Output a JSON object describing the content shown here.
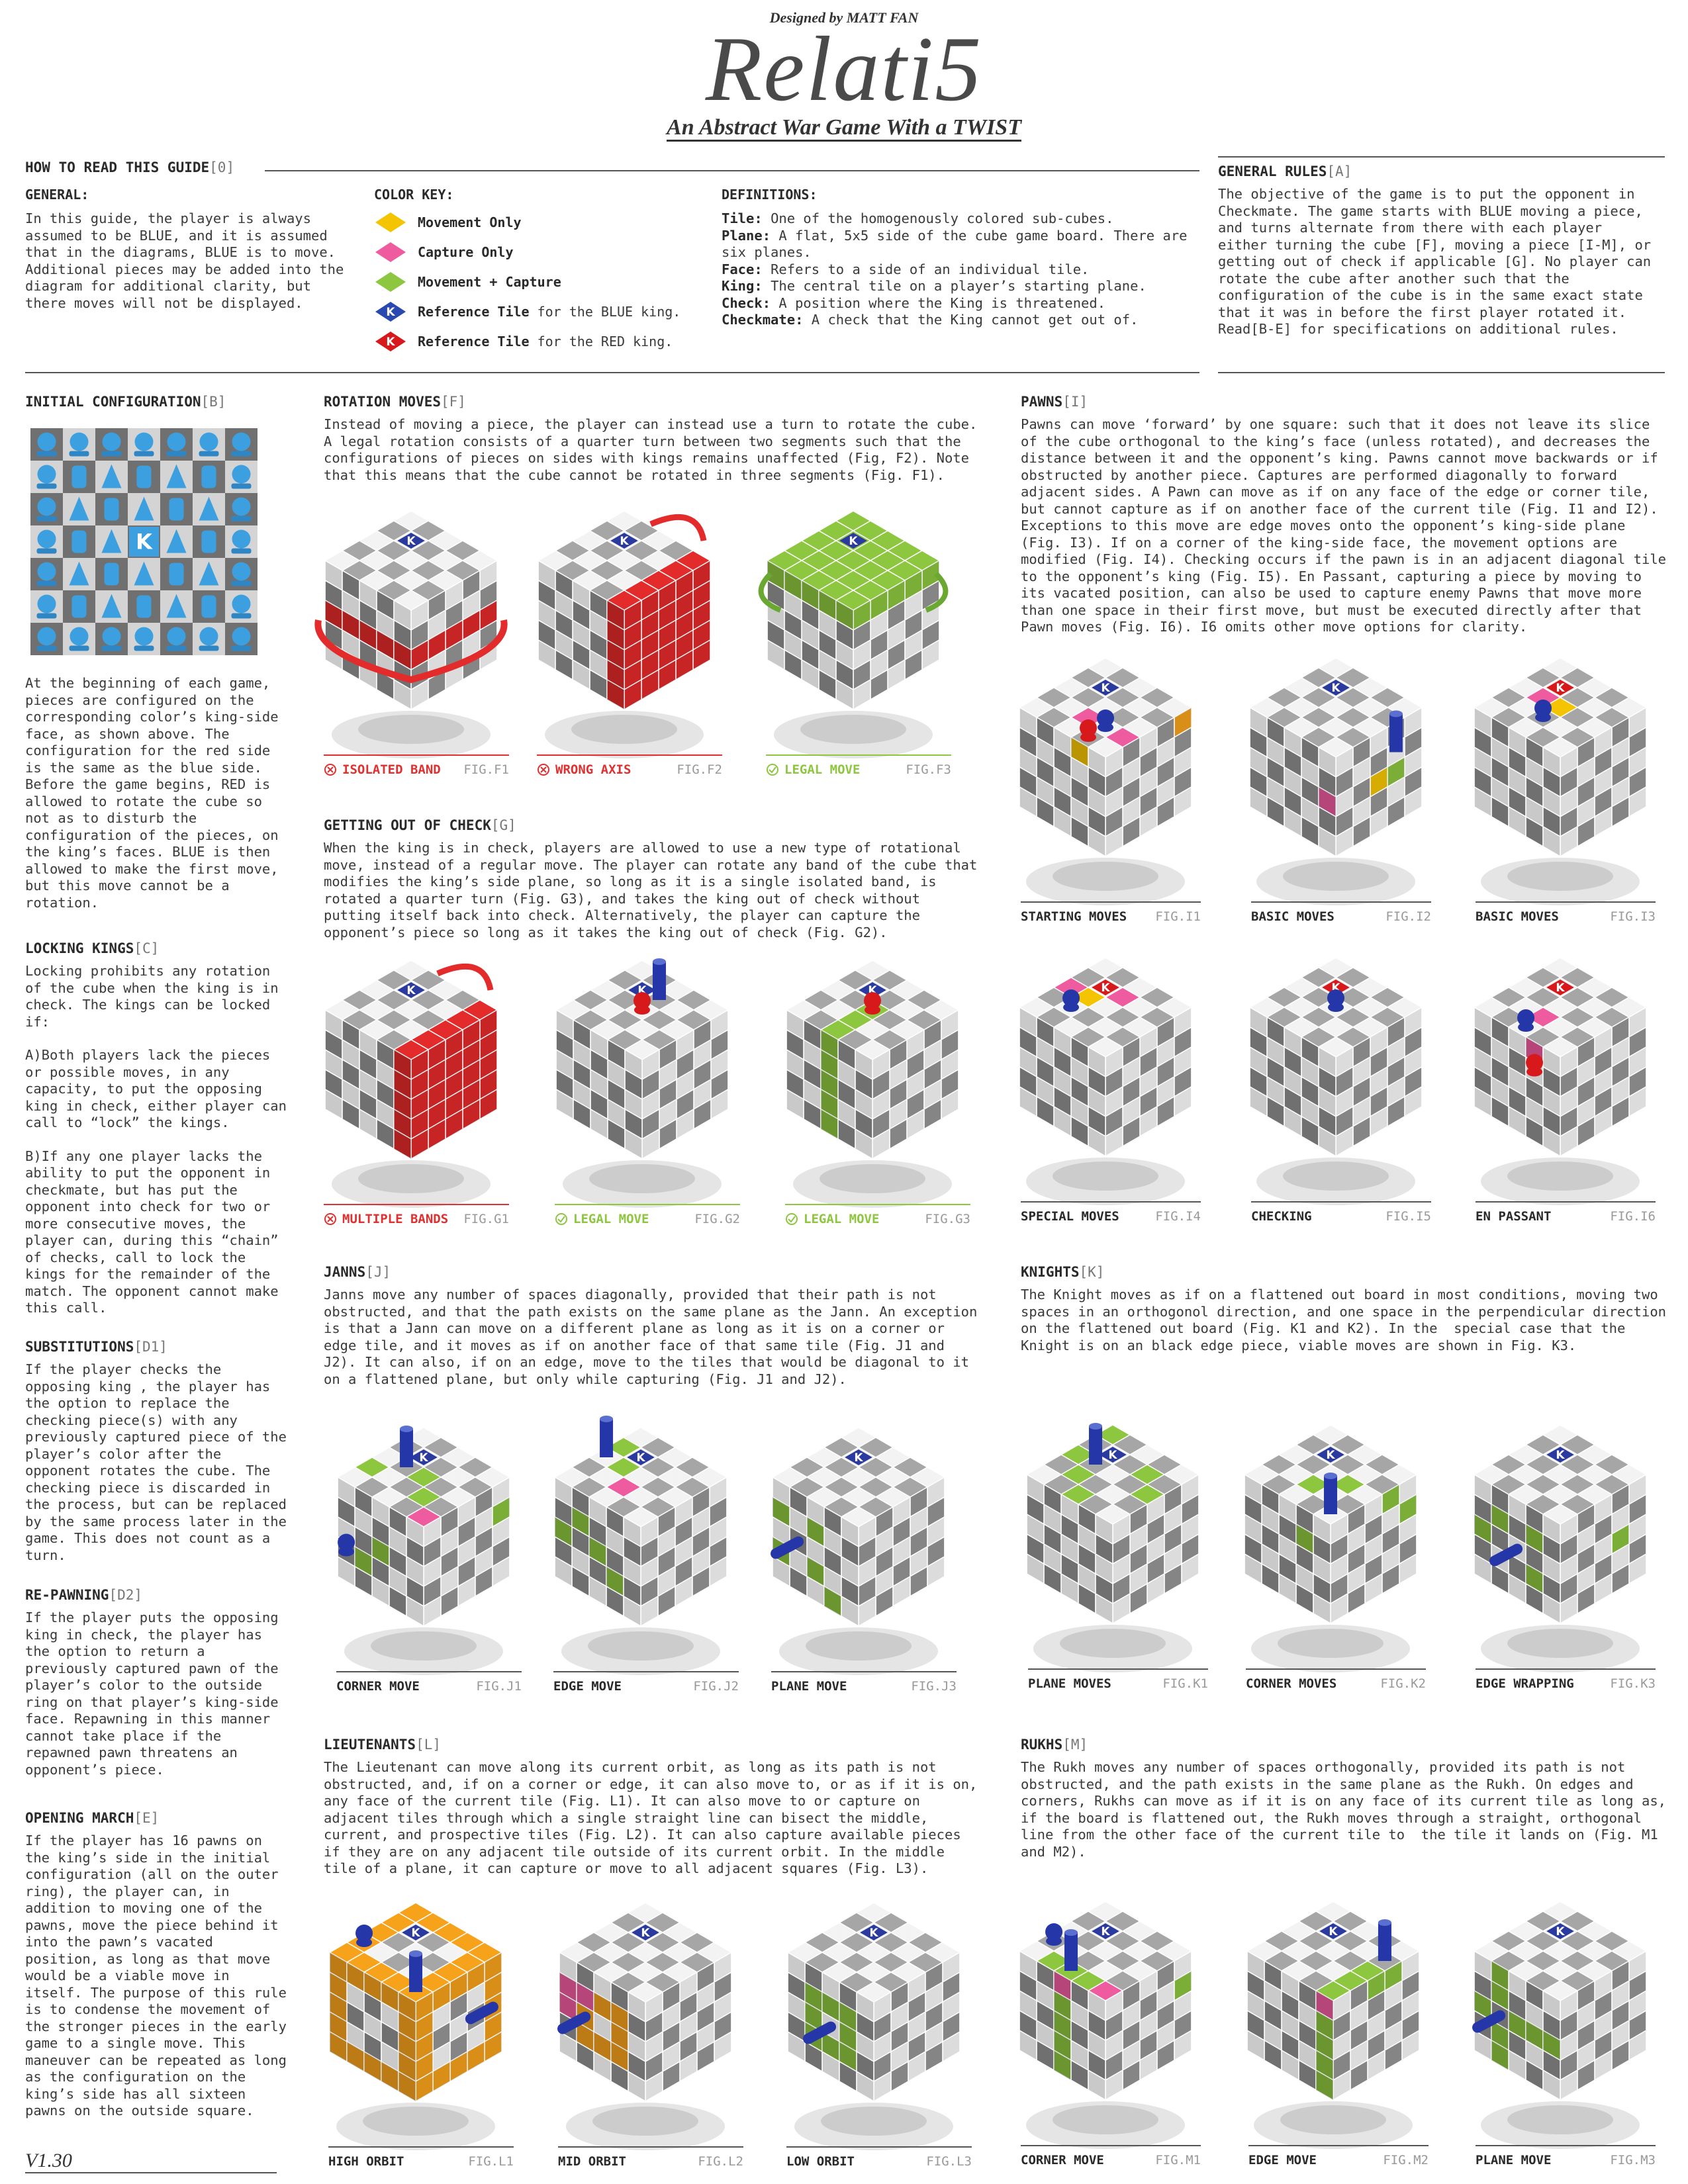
{
  "header": {
    "credit": "Designed by MATT FAN",
    "title": "Relati5",
    "subtitle": "An Abstract War Game With a TWIST"
  },
  "king_marker": "K",
  "guide": {
    "heading": "HOW TO READ THIS GUIDE",
    "tag": "[0]",
    "general": {
      "heading": "GENERAL:",
      "text": "In this guide, the player is always assumed to be BLUE, and it is assumed that in the diagrams, BLUE is to move. Additional pieces may be added into the diagram for additional clarity, but there moves will not be displayed."
    },
    "color_key": {
      "heading": "COLOR KEY:",
      "items": [
        {
          "label": "Movement Only"
        },
        {
          "label": "Capture Only"
        },
        {
          "label": "Movement + Capture"
        },
        {
          "label": "Reference Tile",
          "note": "for the BLUE king."
        },
        {
          "label": "Reference Tile",
          "note": "for the RED king."
        }
      ]
    },
    "definitions": {
      "heading": "DEFINITIONS:",
      "items": [
        {
          "term": "Tile:",
          "text": "One of the homogenously colored sub-cubes."
        },
        {
          "term": "Plane:",
          "text": "A flat, 5x5 side of the cube game board. There are six planes."
        },
        {
          "term": "Face:",
          "text": "Refers to a side of an individual tile."
        },
        {
          "term": "King:",
          "text": "The central tile on a player’s starting plane."
        },
        {
          "term": "Check:",
          "text": "A position where the King is threatened."
        },
        {
          "term": "Checkmate:",
          "text": "A check that the King cannot get out of."
        }
      ]
    }
  },
  "sections": [
    {
      "heading": "GENERAL RULES",
      "tag": "[A]",
      "paragraphs": [
        "The objective of the game is to put the opponent in Checkmate. The game starts with BLUE moving a piece, and turns alternate from there with each player either turning the cube [F], moving a piece [I-M], or getting out of check if applicable [G]. No player can rotate the cube after another such that the configuration of the cube is in the same exact state that it was in before the first player rotated it. Read[B-E] for specifications on additional rules."
      ]
    },
    {
      "heading": "INITIAL CONFIGURATION",
      "tag": "[B]",
      "paragraphs": [
        "At the beginning of each game, pieces are configured on the corresponding color’s king-side face, as shown above. The configuration for the red side is the same as the blue side. Before the game begins, RED is allowed to rotate the cube so not as to disturb the configuration of the pieces, on the king’s faces. BLUE is then allowed to make the first move, but this move cannot be a rotation."
      ]
    },
    {
      "heading": "LOCKING KINGS",
      "tag": "[C]",
      "paragraphs": [
        "Locking prohibits any rotation of the cube when the king is in check. The kings can be locked if:",
        "A)Both players lack the pieces or possible moves, in any capacity, to put the opposing king in check, either player can call to “lock” the kings.",
        "B)If any one player lacks the ability to put the opponent in checkmate, but has put the opponent into check for two or more consecutive moves, the player can, during this “chain” of checks, call to lock the kings for the remainder of the match. The opponent cannot make this call."
      ]
    },
    {
      "heading": "SUBSTITUTIONS",
      "tag": "[D1]",
      "paragraphs": [
        "If the player checks the opposing king , the player has the option to replace the checking piece(s) with any previously captured piece of the player’s color after the opponent rotates the cube. The checking piece is discarded in the process, but can be replaced by the same process later in the game. This does not count as a turn."
      ]
    },
    {
      "heading": "RE-PAWNING",
      "tag": "[D2]",
      "paragraphs": [
        "If the player puts the opposing king in check, the player has the option to return a previously captured pawn of the player’s color to the outside ring on that player’s king-side face. Repawning in this manner cannot take place if the repawned pawn threatens an opponent’s piece."
      ]
    },
    {
      "heading": "OPENING MARCH",
      "tag": "[E]",
      "paragraphs": [
        "If the player has 16 pawns on the king’s side in the initial configuration (all on the outer ring), the player can, in addition to moving one of the pawns, move the piece behind it into the pawn’s vacated position, as long as that move would be a viable move in itself. The purpose of this rule is to condense the movement of the stronger pieces in the early game to a single move. This maneuver can be repeated as long as the configuration on the king’s side has all sixteen pawns on the outside square."
      ]
    },
    {
      "heading": "ROTATION MOVES",
      "tag": "[F]",
      "paragraphs": [
        "Instead of moving a piece, the player can instead use a turn to rotate the cube. A legal rotation consists of a quarter turn between two segments such that the configurations of pieces on sides with kings remains unaffected (Fig, F2). Note that this means that the cube cannot be rotated in three segments (Fig. F1)."
      ],
      "figures": [
        {
          "label": "ISOLATED BAND",
          "fig": "FIG.F1"
        },
        {
          "label": "WRONG AXIS",
          "fig": "FIG.F2"
        },
        {
          "label": "LEGAL MOVE",
          "fig": "FIG.F3"
        }
      ]
    },
    {
      "heading": "GETTING OUT OF CHECK",
      "tag": "[G]",
      "paragraphs": [
        "When the king is in check, players are allowed to use a new type of rotational move, instead of a regular move. The player can rotate any band of the cube that modifies the king’s side plane, so long as it is a single isolated band, is rotated a quarter turn (Fig. G3), and takes the king out of check without putting itself back into check. Alternatively, the player can capture the opponent’s piece so long as it takes the king out of check (Fig. G2)."
      ],
      "figures": [
        {
          "label": "MULTIPLE BANDS",
          "fig": "FIG.G1"
        },
        {
          "label": "LEGAL MOVE",
          "fig": "FIG.G2"
        },
        {
          "label": "LEGAL MOVE",
          "fig": "FIG.G3"
        }
      ]
    },
    {
      "heading": "PAWNS",
      "tag": "[I]",
      "paragraphs": [
        "Pawns can move ‘forward’ by one square: such that it does not leave its slice of the cube orthogonal to the king’s face (unless rotated), and decreases the distance between it and the opponent’s king. Pawns cannot move backwards or if obstructed by another piece. Captures are performed diagonally to forward adjacent sides. A Pawn can move as if on any face of the edge or corner tile, but cannot capture as if on another face of the current tile (Fig. I1 and I2). Exceptions to this move are edge moves onto the opponent’s king-side plane (Fig. I3). If on a corner of the king-side face, the movement options are modified (Fig. I4). Checking occurs if the pawn is in an adjacent diagonal tile to the opponent’s king (Fig. I5). En Passant, capturing a piece by moving to its vacated position, can also be used to capture enemy Pawns that move more than one space in their first move, but must be executed directly after that Pawn moves (Fig. I6). I6 omits other move options for clarity."
      ],
      "figures": [
        {
          "label": "STARTING MOVES",
          "fig": "FIG.I1"
        },
        {
          "label": "BASIC MOVES",
          "fig": "FIG.I2"
        },
        {
          "label": "BASIC MOVES",
          "fig": "FIG.I3"
        },
        {
          "label": "SPECIAL MOVES",
          "fig": "FIG.I4"
        },
        {
          "label": "CHECKING",
          "fig": "FIG.I5"
        },
        {
          "label": "EN PASSANT",
          "fig": "FIG.I6"
        }
      ]
    },
    {
      "heading": "JANNS",
      "tag": "[J]",
      "paragraphs": [
        "Janns move any number of spaces diagonally, provided that their path is not obstructed, and that the path exists on the same plane as the Jann. An exception is that a Jann can move on a different plane as long as it is on a corner or edge tile, and it moves as if on another face of that same tile (Fig. J1 and J2). It can also, if on an edge, move to the tiles that would be diagonal to it on a flattened plane, but only while capturing (Fig. J1 and J2)."
      ],
      "figures": [
        {
          "label": "CORNER MOVE",
          "fig": "FIG.J1"
        },
        {
          "label": "EDGE MOVE",
          "fig": "FIG.J2"
        },
        {
          "label": "PLANE MOVE",
          "fig": "FIG.J3"
        }
      ]
    },
    {
      "heading": "KNIGHTS",
      "tag": "[K]",
      "paragraphs": [
        "The Knight moves as if on a flattened out board in most conditions, moving two spaces in an orthogonol direction, and one space in the perpendicular direction on the flattened out board (Fig. K1 and K2). In the  special case that the Knight is on an black edge piece, viable moves are shown in Fig. K3."
      ],
      "figures": [
        {
          "label": "PLANE MOVES",
          "fig": "FIG.K1"
        },
        {
          "label": "CORNER MOVES",
          "fig": "FIG.K2"
        },
        {
          "label": "EDGE WRAPPING",
          "fig": "FIG.K3"
        }
      ]
    },
    {
      "heading": "LIEUTENANTS",
      "tag": "[L]",
      "paragraphs": [
        "The Lieutenant can move along its current orbit, as long as its path is not obstructed, and, if on a corner or edge, it can also move to, or as if it is on, any face of the current tile (Fig. L1). It can also move to or capture on adjacent tiles through which a single straight line can bisect the middle, current, and prospective tiles (Fig. L2). It can also capture available pieces if they are on any adjacent tile outside of its current orbit. In the middle tile of a plane, it can capture or move to all adjacent squares (Fig. L3)."
      ],
      "figures": [
        {
          "label": "HIGH ORBIT",
          "fig": "FIG.L1"
        },
        {
          "label": "MID ORBIT",
          "fig": "FIG.L2"
        },
        {
          "label": "LOW ORBIT",
          "fig": "FIG.L3"
        }
      ]
    },
    {
      "heading": "RUKHS",
      "tag": "[M]",
      "paragraphs": [
        "The Rukh moves any number of spaces orthogonally, provided its path is not obstructed, and the path exists in the same plane as the Rukh. On edges and corners, Rukhs can move as if it is on any face of its current tile as long as, if the board is flattened out, the Rukh moves through a straight, orthogonal line from the other face of the current tile to  the tile it lands on (Fig. M1 and M2)."
      ],
      "figures": [
        {
          "label": "CORNER MOVE",
          "fig": "FIG.M1"
        },
        {
          "label": "EDGE MOVE",
          "fig": "FIG.M2"
        },
        {
          "label": "PLANE MOVE",
          "fig": "FIG.M3"
        }
      ]
    }
  ],
  "version": "V1.30"
}
